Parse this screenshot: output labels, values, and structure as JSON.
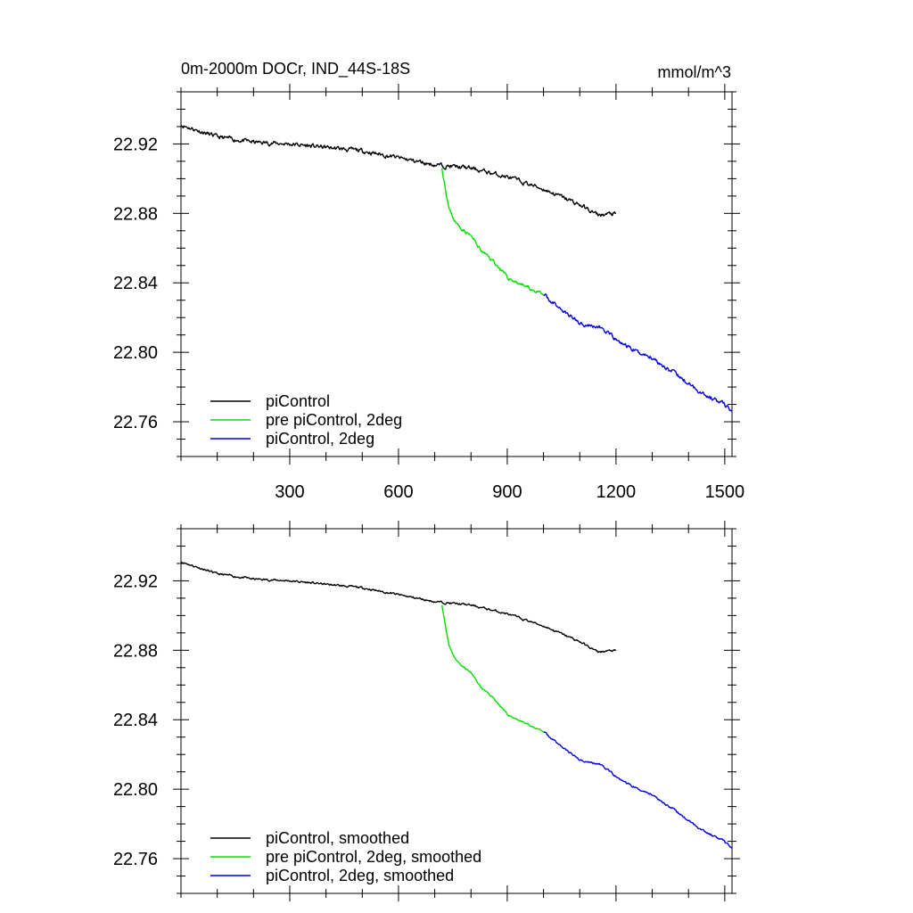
{
  "title": "0m-2000m DOCr, IND_44S-18S",
  "units": "mmol/m^3",
  "colors": {
    "piControl": "#000000",
    "pre2deg": "#00e000",
    "twodeg": "#0000e0"
  },
  "chart_data": [
    {
      "type": "line",
      "panel": "top",
      "title": "0m-2000m DOCr, IND_44S-18S",
      "units_label": "mmol/m^3",
      "xlim": [
        0,
        1520
      ],
      "ylim": [
        22.74,
        22.95
      ],
      "xticks": [
        300,
        600,
        900,
        1200,
        1500
      ],
      "xtick_labels": [
        "300",
        "600",
        "900",
        "1200",
        "1500"
      ],
      "yticks": [
        22.76,
        22.8,
        22.84,
        22.88,
        22.92
      ],
      "ytick_labels": [
        "22.76",
        "22.80",
        "22.84",
        "22.88",
        "22.92"
      ],
      "legend": [
        "piControl",
        "pre piControl, 2deg",
        "piControl, 2deg"
      ],
      "legend_position": "bottom-left",
      "series": [
        {
          "name": "piControl",
          "color": "#000000",
          "noise": 0.0025,
          "seed": 11,
          "x": [
            0,
            100,
            200,
            300,
            400,
            500,
            600,
            700,
            800,
            900,
            1000,
            1100,
            1150,
            1200
          ],
          "y": [
            22.931,
            22.924,
            22.921,
            22.92,
            22.918,
            22.916,
            22.912,
            22.908,
            22.906,
            22.901,
            22.894,
            22.885,
            22.879,
            22.88
          ]
        },
        {
          "name": "pre piControl, 2deg",
          "color": "#00e000",
          "noise": 0.0022,
          "seed": 23,
          "x": [
            720,
            740,
            760,
            800,
            830,
            860,
            900,
            940,
            980,
            1000
          ],
          "y": [
            22.906,
            22.882,
            22.874,
            22.867,
            22.858,
            22.853,
            22.843,
            22.839,
            22.835,
            22.833
          ]
        },
        {
          "name": "piControl, 2deg",
          "color": "#0000e0",
          "noise": 0.0025,
          "seed": 37,
          "x": [
            1000,
            1060,
            1100,
            1160,
            1200,
            1260,
            1300,
            1340,
            1380,
            1420,
            1460,
            1500,
            1520
          ],
          "y": [
            22.833,
            22.823,
            22.817,
            22.814,
            22.807,
            22.8,
            22.797,
            22.791,
            22.785,
            22.779,
            22.774,
            22.77,
            22.766
          ]
        }
      ]
    },
    {
      "type": "line",
      "panel": "bottom",
      "xlim": [
        0,
        1520
      ],
      "ylim": [
        22.74,
        22.95
      ],
      "xticks": [
        300,
        600,
        900,
        1200,
        1500
      ],
      "yticks": [
        22.76,
        22.8,
        22.84,
        22.88,
        22.92
      ],
      "ytick_labels": [
        "22.76",
        "22.80",
        "22.84",
        "22.88",
        "22.92"
      ],
      "legend": [
        "piControl, smoothed",
        "pre piControl, 2deg, smoothed",
        "piControl, 2deg, smoothed"
      ],
      "legend_position": "bottom-left",
      "series": [
        {
          "name": "piControl, smoothed",
          "color": "#000000",
          "noise": 0.0012,
          "seed": 11,
          "x": [
            0,
            100,
            200,
            300,
            400,
            500,
            600,
            700,
            800,
            900,
            1000,
            1100,
            1150,
            1200
          ],
          "y": [
            22.931,
            22.924,
            22.921,
            22.92,
            22.918,
            22.916,
            22.912,
            22.908,
            22.906,
            22.901,
            22.894,
            22.885,
            22.879,
            22.88
          ]
        },
        {
          "name": "pre piControl, 2deg, smoothed",
          "color": "#00e000",
          "noise": 0.001,
          "seed": 23,
          "x": [
            720,
            740,
            760,
            800,
            830,
            860,
            900,
            940,
            980,
            1000
          ],
          "y": [
            22.906,
            22.882,
            22.874,
            22.867,
            22.858,
            22.853,
            22.843,
            22.839,
            22.835,
            22.833
          ]
        },
        {
          "name": "piControl, 2deg, smoothed",
          "color": "#0000e0",
          "noise": 0.0012,
          "seed": 37,
          "x": [
            1000,
            1060,
            1100,
            1160,
            1200,
            1260,
            1300,
            1340,
            1380,
            1420,
            1460,
            1500,
            1520
          ],
          "y": [
            22.833,
            22.823,
            22.817,
            22.814,
            22.807,
            22.8,
            22.797,
            22.791,
            22.785,
            22.779,
            22.774,
            22.77,
            22.766
          ]
        }
      ]
    }
  ]
}
